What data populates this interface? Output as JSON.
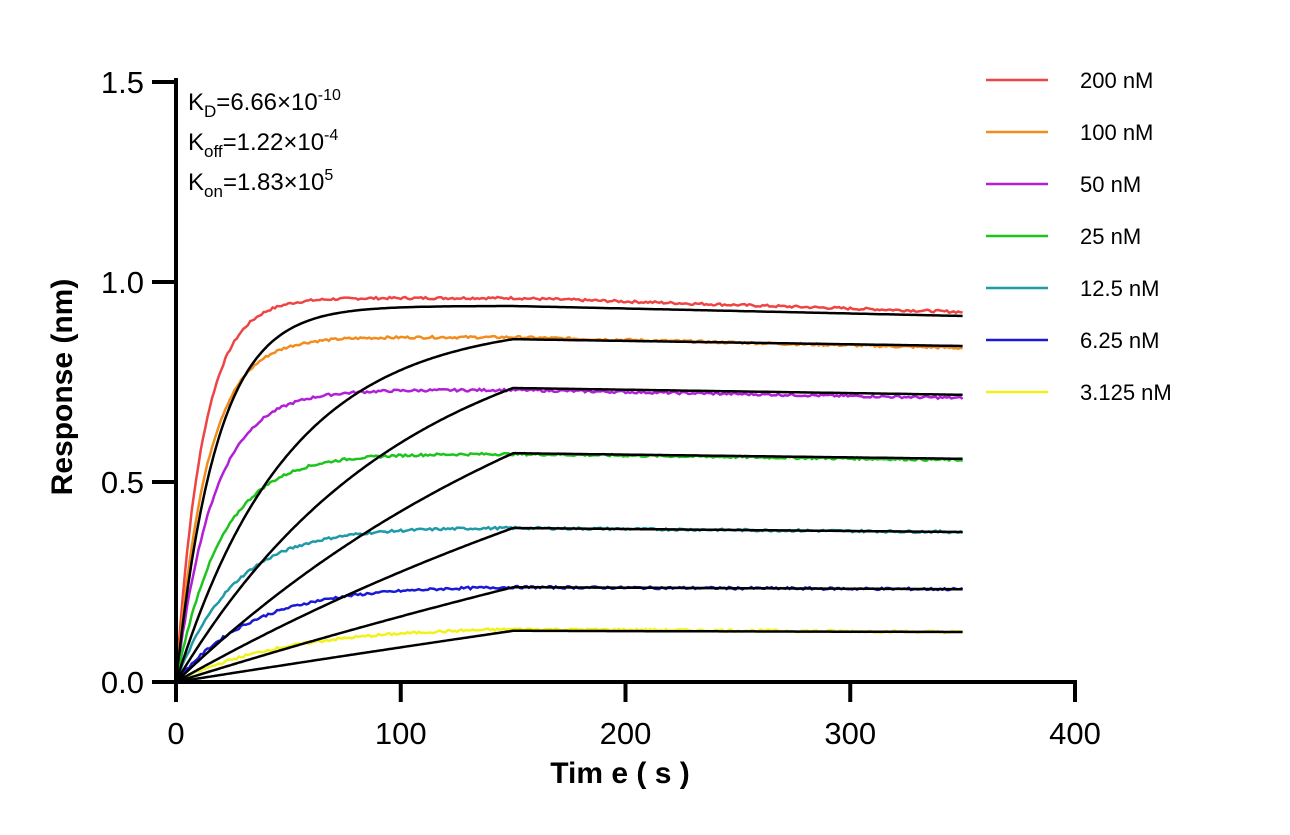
{
  "chart_data": {
    "type": "line",
    "xlabel": "Tim e ( s )",
    "ylabel": "Response (nm)",
    "xlim": [
      0,
      400
    ],
    "ylim": [
      0,
      1.5
    ],
    "xticks": [
      "0",
      "100",
      "200",
      "300",
      "400"
    ],
    "yticks": [
      "0.0",
      "0.5",
      "1.0",
      "1.5"
    ],
    "grid": false,
    "legend_position": "top-right",
    "association_end": 150,
    "time_end": 350,
    "fit_color": "#000000",
    "annotations": {
      "kd": {
        "base": "K",
        "sub": "D",
        "mid": "=6.66×10",
        "sup": "-10"
      },
      "koff": {
        "base": "K",
        "sub": "off",
        "mid": "=1.22×10",
        "sup": "-4"
      },
      "kon": {
        "base": "K",
        "sub": "on",
        "mid": "=1.83×10",
        "sup": "5"
      }
    },
    "series": [
      {
        "name": "200 nM",
        "color": "#ef4444",
        "plateau": 0.96,
        "end": 0.925,
        "fit_peak": 0.94,
        "fit_end": 0.915,
        "fit_rate": 0.055
      },
      {
        "name": "100 nM",
        "color": "#f28c1c",
        "plateau": 0.862,
        "end": 0.835,
        "fit_peak": 0.857,
        "fit_end": 0.84,
        "fit_rate": 0.02
      },
      {
        "name": "50 nM",
        "color": "#b11fd6",
        "plateau": 0.73,
        "end": 0.71,
        "fit_peak": 0.735,
        "fit_end": 0.718,
        "fit_rate": 0.01
      },
      {
        "name": "25 nM",
        "color": "#1ec41e",
        "plateau": 0.57,
        "end": 0.555,
        "fit_peak": 0.572,
        "fit_end": 0.558,
        "fit_rate": 0.005
      },
      {
        "name": "12.5 nM",
        "color": "#1f9aa8",
        "plateau": 0.385,
        "end": 0.375,
        "fit_peak": 0.385,
        "fit_end": 0.375,
        "fit_rate": 0.003
      },
      {
        "name": "6.25 nM",
        "color": "#1a1ad6",
        "plateau": 0.237,
        "end": 0.232,
        "fit_peak": 0.237,
        "fit_end": 0.232,
        "fit_rate": 0.0015
      },
      {
        "name": "3.125 nM",
        "color": "#f2f21a",
        "plateau": 0.132,
        "end": 0.125,
        "fit_peak": 0.128,
        "fit_end": 0.125,
        "fit_rate": 0.0006
      }
    ]
  }
}
